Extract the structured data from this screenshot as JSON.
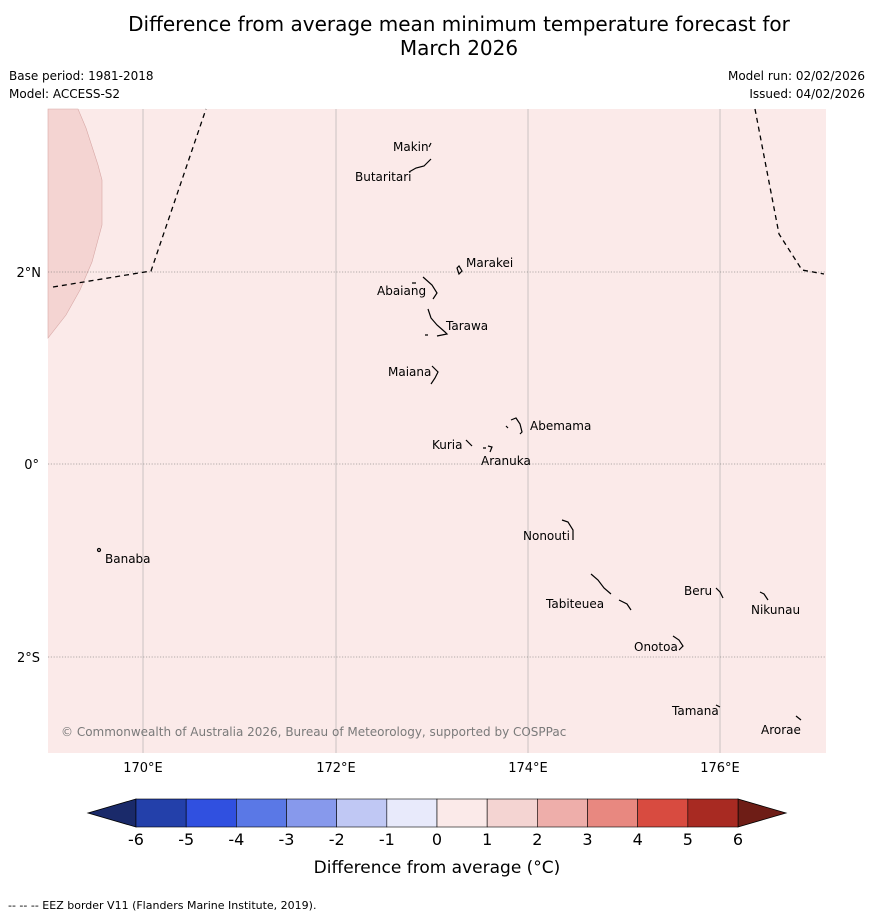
{
  "title": {
    "line1": "Difference from average mean minimum temperature forecast for",
    "line2": "March 2026"
  },
  "meta": {
    "base_period": "Base period: 1981-2018",
    "model": "Model: ACCESS-S2",
    "model_run": "Model run: 02/02/2026",
    "issued": "Issued: 04/02/2026"
  },
  "map": {
    "lon_labels": [
      "170°E",
      "172°E",
      "174°E",
      "176°E"
    ],
    "lat_labels": [
      "2°N",
      "0°",
      "2°S"
    ],
    "copyright": "© Commonwealth of Australia 2026, Bureau of Meteorology, supported by COSPPac",
    "islands": {
      "makin": "Makin",
      "butaritari": "Butaritari",
      "marakei": "Marakei",
      "abaiang": "Abaiang",
      "tarawa": "Tarawa",
      "maiana": "Maiana",
      "abemama": "Abemama",
      "kuria": "Kuria",
      "aranuka": "Aranuka",
      "banaba": "Banaba",
      "nonouti": "Nonouti",
      "beru": "Beru",
      "tabiteuea": "Tabiteuea",
      "nikunau": "Nikunau",
      "onotoa": "Onotoa",
      "tamana": "Tamana",
      "arorae": "Arorae"
    },
    "colors": {
      "background_anomaly": "#fbeae9",
      "warm_anomaly": "#f4d4d2"
    }
  },
  "colorbar": {
    "ticks": [
      "-6",
      "-5",
      "-4",
      "-3",
      "-2",
      "-1",
      "0",
      "1",
      "2",
      "3",
      "4",
      "5",
      "6"
    ],
    "label": "Difference from average (°C)",
    "colors": [
      "#2340aa",
      "#3050e0",
      "#5a78e6",
      "#8799ec",
      "#c0c8f4",
      "#e8eafb",
      "#fbeae9",
      "#f4d4d2",
      "#eeaeaa",
      "#e88880",
      "#d84b40",
      "#a82a22"
    ],
    "low_extend": "#1a2a6a",
    "high_extend": "#6e1d16"
  },
  "footer": "--  --  -- EEZ border V11 (Flanders Marine Institute, 2019)."
}
